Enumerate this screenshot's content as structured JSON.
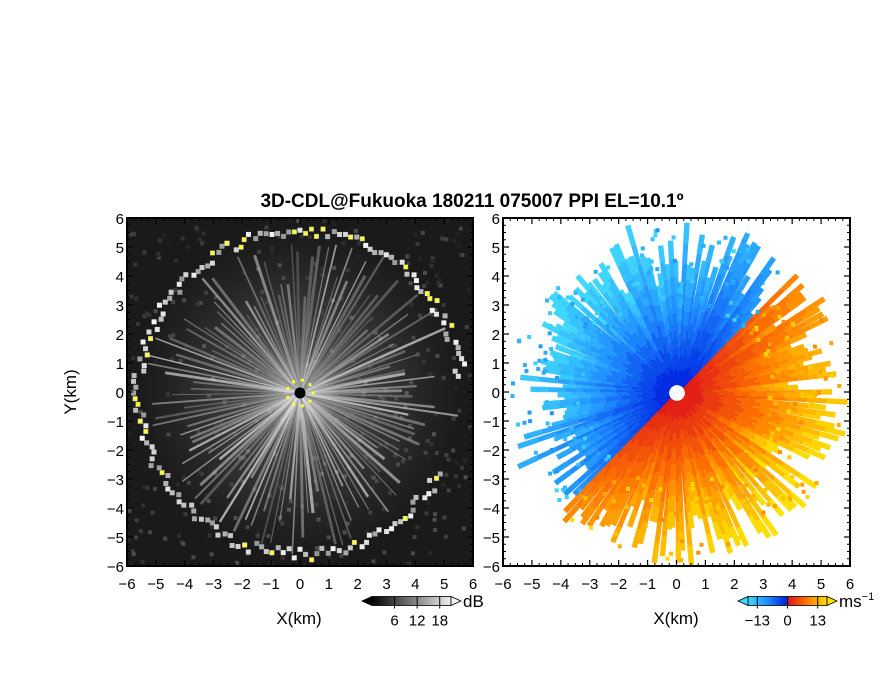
{
  "chart_data": {
    "type": "heatmap",
    "title": "3D-CDL@Fukuoka 180211 075007 PPI EL=10.1º",
    "panels": [
      {
        "name": "reflectivity",
        "xlabel": "X(km)",
        "ylabel": "Y(km)",
        "xlim": [
          -6,
          6
        ],
        "ylim": [
          -6,
          6
        ],
        "x_ticks": [
          "−6",
          "−5",
          "−4",
          "−3",
          "−2",
          "−1",
          "0",
          "1",
          "2",
          "3",
          "4",
          "5",
          "6"
        ],
        "y_ticks": [
          "6",
          "5",
          "4",
          "3",
          "2",
          "1",
          "0",
          "−1",
          "−2",
          "−3",
          "−4",
          "−5",
          "−6"
        ],
        "colorbar": {
          "colormap": "grayscale",
          "ticks": [
            "6",
            "12",
            "18"
          ],
          "unit": "dB",
          "range": [
            0,
            21
          ]
        },
        "echo_edge_radius_km": 5.6
      },
      {
        "name": "doppler_velocity",
        "xlabel": "X(km)",
        "ylabel": "",
        "xlim": [
          -6,
          6
        ],
        "ylim": [
          -6,
          6
        ],
        "x_ticks": [
          "−6",
          "−5",
          "−4",
          "−3",
          "−2",
          "−1",
          "0",
          "1",
          "2",
          "3",
          "4",
          "5",
          "6"
        ],
        "y_ticks": [
          "6",
          "5",
          "4",
          "3",
          "2",
          "1",
          "0",
          "−1",
          "−2",
          "−3",
          "−4",
          "−5",
          "−6"
        ],
        "colorbar": {
          "colormap": "cyan-blue-red-orange-yellow",
          "ticks": [
            "−13",
            "0",
            "13"
          ],
          "unit": "ms",
          "unit_exponent": "−1",
          "range": [
            -17,
            17
          ]
        },
        "velocity_pattern": "negative (blue) toward northwest, positive (red/yellow) toward southeast"
      }
    ]
  },
  "colors": {
    "background": "#ffffff",
    "radar_bg": "#1a1a1a",
    "clutter_highlight": "#ffff33",
    "velocity_negative": "#0044ee",
    "velocity_positive": "#ee2222"
  }
}
